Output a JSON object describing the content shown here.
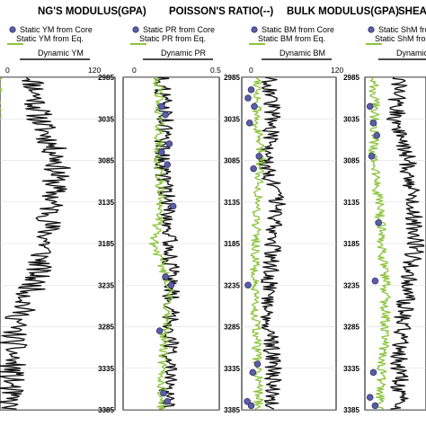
{
  "chart_data": [
    {
      "type": "line",
      "title": "NG'S MODULUS(GPA)",
      "x_ticks": [
        "0",
        "120"
      ],
      "xlim": [
        0,
        120
      ],
      "legend": [
        "Static YM from Core",
        "Static YM from Eq.",
        "Dynamic YM"
      ],
      "dynamic": {
        "name": "Dynamic YM",
        "depth": [
          2985,
          3035,
          3085,
          3135,
          3185,
          3235,
          3285,
          3335,
          3385
        ],
        "values": [
          55,
          60,
          75,
          70,
          65,
          55,
          40,
          38,
          35
        ]
      },
      "static_eq": {
        "name": "Static YM from Eq.",
        "depth": [
          2985,
          3035,
          3085,
          3135,
          3185,
          3235,
          3285,
          3335,
          3385
        ],
        "values": [
          25,
          24,
          5,
          15,
          5,
          10,
          15,
          20,
          22
        ]
      },
      "static_core": {
        "name": "Static YM from Core",
        "depth": [
          3005,
          3015,
          3025,
          3030,
          3065,
          3080,
          3090,
          3095,
          3130,
          3175,
          3240,
          3260,
          3355,
          3375,
          3380
        ],
        "values": [
          4,
          8,
          6,
          12,
          4,
          5,
          3,
          10,
          6,
          8,
          4,
          6,
          5,
          8,
          10
        ]
      }
    },
    {
      "type": "line",
      "title": "POISSON'S RATIO(--)",
      "x_ticks": [
        "0",
        "0.5"
      ],
      "xlim": [
        0,
        0.5
      ],
      "legend": [
        "Static PR from Core",
        "Static PR from Eq.",
        "Dynamic PR"
      ],
      "dynamic": {
        "name": "Dynamic PR",
        "depth": [
          2985,
          3035,
          3085,
          3135,
          3185,
          3235,
          3285,
          3335,
          3385
        ],
        "values": [
          0.2,
          0.22,
          0.2,
          0.23,
          0.24,
          0.25,
          0.25,
          0.24,
          0.22
        ]
      },
      "static_eq": {
        "name": "Static PR from Eq.",
        "depth": [
          2985,
          3035,
          3085,
          3135,
          3185,
          3235,
          3285,
          3335,
          3385
        ],
        "values": [
          0.18,
          0.19,
          0.18,
          0.2,
          0.16,
          0.24,
          0.22,
          0.2,
          0.2
        ]
      },
      "static_core": {
        "name": "Static PR from Core",
        "depth": [
          3020,
          3030,
          3065,
          3075,
          3090,
          3140,
          3225,
          3235,
          3290,
          3365,
          3375
        ],
        "values": [
          0.2,
          0.22,
          0.24,
          0.2,
          0.23,
          0.26,
          0.22,
          0.25,
          0.19,
          0.21,
          0.23
        ]
      }
    },
    {
      "type": "line",
      "title": "BULK MODULUS(GPA)",
      "x_ticks": [
        "0",
        "120"
      ],
      "xlim": [
        0,
        120
      ],
      "legend": [
        "Static BM from Core",
        "Static BM from Eq.",
        "Dynamic BM"
      ],
      "dynamic": {
        "name": "Dynamic BM",
        "depth": [
          2985,
          3035,
          3085,
          3135,
          3185,
          3235,
          3285,
          3335,
          3385
        ],
        "values": [
          35,
          40,
          30,
          45,
          40,
          35,
          35,
          40,
          38
        ]
      },
      "static_eq": {
        "name": "Static BM from Eq.",
        "depth": [
          2985,
          3035,
          3085,
          3135,
          3185,
          3235,
          3285,
          3335,
          3385
        ],
        "values": [
          22,
          18,
          25,
          20,
          18,
          15,
          18,
          20,
          22
        ]
      },
      "static_core": {
        "name": "Static BM from Core",
        "depth": [
          3000,
          3010,
          3020,
          3040,
          3080,
          3095,
          3235,
          3330,
          3340,
          3375,
          3380
        ],
        "values": [
          12,
          8,
          16,
          10,
          22,
          15,
          8,
          20,
          14,
          7,
          12
        ]
      }
    },
    {
      "type": "line",
      "title": "SHEAR MODUL",
      "legend": [
        "Static ShM from",
        "Static ShM from",
        "Dynamic"
      ],
      "dynamic": {
        "name": "Dynamic",
        "depth": [
          2985,
          3035,
          3085,
          3135,
          3185,
          3235,
          3285,
          3335,
          3385
        ],
        "values": [
          20,
          18,
          25,
          28,
          30,
          25,
          22,
          20,
          20
        ]
      },
      "static_eq": {
        "name": "Static ShM from",
        "depth": [
          2985,
          3035,
          3085,
          3135,
          3185,
          3235,
          3285,
          3335,
          3385
        ],
        "values": [
          5,
          6,
          5,
          8,
          10,
          12,
          12,
          10,
          8
        ]
      },
      "static_core": {
        "name": "Static ShM from",
        "depth": [
          3020,
          3040,
          3055,
          3080,
          3160,
          3230,
          3340,
          3370,
          3380
        ],
        "values": [
          3,
          5,
          7,
          4,
          8,
          6,
          5,
          3,
          6
        ]
      }
    }
  ],
  "depth_ticks": [
    "2985",
    "3035",
    "3085",
    "3135",
    "3185",
    "3235",
    "3285",
    "3335",
    "3385"
  ],
  "colors": {
    "dynamic": "#111111",
    "static_eq": "#8cc43c",
    "static_core": "#5b5ea6",
    "marker_edge": "#2f316b"
  }
}
